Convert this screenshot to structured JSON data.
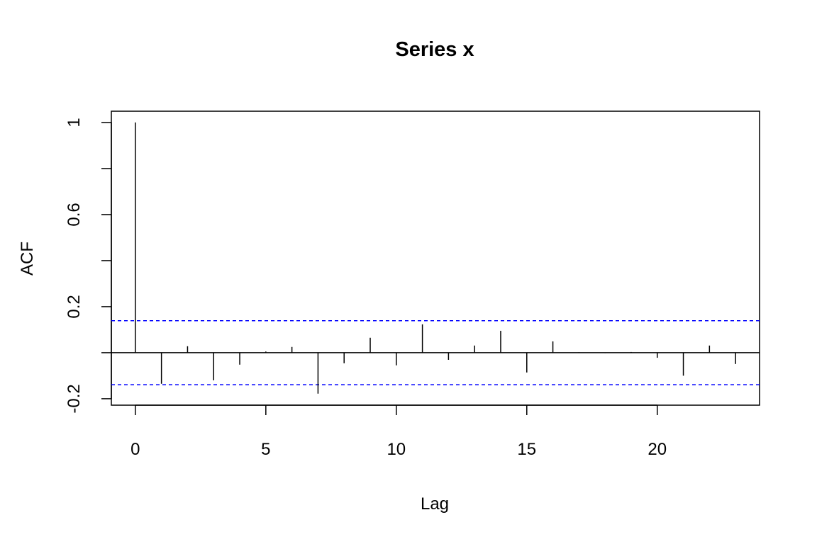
{
  "chart_data": {
    "type": "acf",
    "title": "Series  x",
    "xlabel": "Lag",
    "ylabel": "ACF",
    "x": [
      0,
      1,
      2,
      3,
      4,
      5,
      6,
      7,
      8,
      9,
      10,
      11,
      12,
      13,
      14,
      15,
      16,
      17,
      18,
      19,
      20,
      21,
      22,
      23
    ],
    "values": [
      1.0,
      -0.135,
      0.028,
      -0.12,
      -0.052,
      0.005,
      0.025,
      -0.178,
      -0.046,
      0.065,
      -0.055,
      0.123,
      -0.031,
      0.031,
      0.095,
      -0.086,
      0.049,
      0.002,
      -0.002,
      0.003,
      -0.022,
      -0.1,
      0.031,
      -0.049
    ],
    "color": "#000000",
    "xlim": [
      -0.92,
      23.92
    ],
    "xticks": [
      0,
      5,
      10,
      15,
      20
    ],
    "ylim": [
      -0.228,
      1.049
    ],
    "yticks": [
      -0.2,
      0.2,
      0.6,
      1.0
    ],
    "yticks_unlabeled": [
      0,
      0.4,
      0.8
    ],
    "conf_limits": [
      0.139,
      -0.139
    ],
    "conf_color": "#0000ff"
  }
}
